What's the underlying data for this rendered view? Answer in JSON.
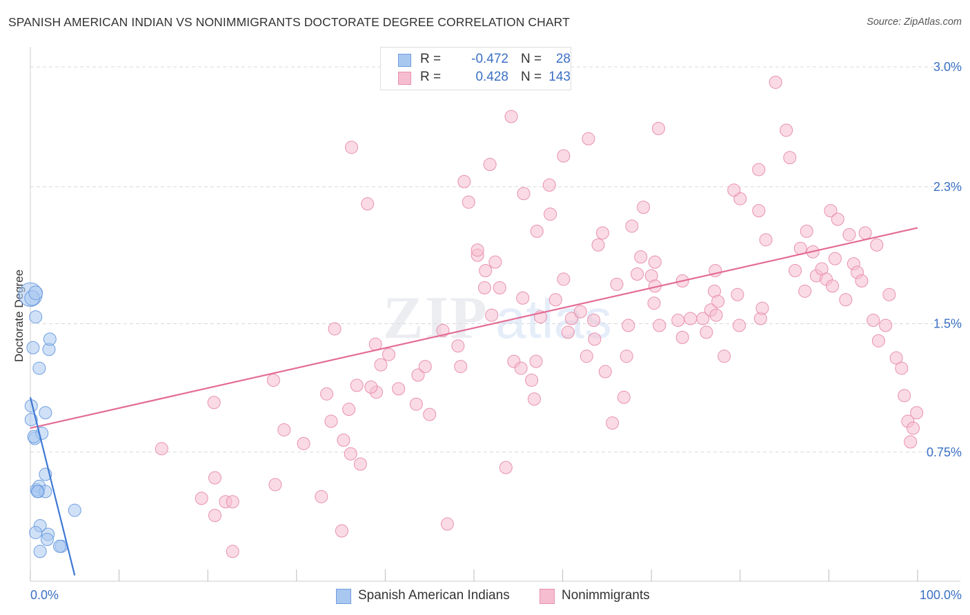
{
  "header": {
    "title": "SPANISH AMERICAN INDIAN VS NONIMMIGRANTS DOCTORATE DEGREE CORRELATION CHART",
    "source": "Source: ZipAtlas.com"
  },
  "legend_top": {
    "rows": [
      {
        "r_label": "R =",
        "r_value": "-0.472",
        "n_label": "N =",
        "n_value": "28"
      },
      {
        "r_label": "R =",
        "r_value": "0.428",
        "n_label": "N =",
        "n_value": "143"
      }
    ]
  },
  "colors": {
    "blue_fill": "#a9c8f0",
    "blue_stroke": "#6d9de0",
    "blue_line": "#3d78d4",
    "pink_fill": "#f6bdd0",
    "pink_stroke": "#e890ad",
    "pink_line": "#e46b95",
    "axis_text": "#3a6fc4",
    "grid": "#d8d8d8"
  },
  "chart_data": {
    "type": "scatter",
    "title": "SPANISH AMERICAN INDIAN VS NONIMMIGRANTS DOCTORATE DEGREE CORRELATION CHART",
    "xlabel": "",
    "ylabel": "Doctorate Degree",
    "xlim": [
      0,
      100
    ],
    "ylim": [
      0,
      3.0
    ],
    "x_tick_labels": [
      "0.0%",
      "100.0%"
    ],
    "y_ticks": [
      0.75,
      1.5,
      2.3,
      3.0
    ],
    "y_tick_labels": [
      "0.75%",
      "1.5%",
      "2.3%",
      "3.0%"
    ],
    "grid": true,
    "legend_position": "bottom-center",
    "series": [
      {
        "name": "Spanish American Indians",
        "r": -0.472,
        "n": 28,
        "trend": {
          "x": [
            0.0,
            5.0
          ],
          "y": [
            1.07,
            0.03
          ]
        },
        "points": [
          [
            0.0,
            1.67,
            1.9
          ],
          [
            0.2,
            1.65,
            1.2
          ],
          [
            0.6,
            1.68,
            1.1
          ],
          [
            0.6,
            1.54,
            1.0
          ],
          [
            0.3,
            1.36,
            1.0
          ],
          [
            2.1,
            1.35,
            1.0
          ],
          [
            2.2,
            1.41,
            1.0
          ],
          [
            1.0,
            1.24,
            1.0
          ],
          [
            0.1,
            1.02,
            1.0
          ],
          [
            1.7,
            0.98,
            1.0
          ],
          [
            0.1,
            0.94,
            1.0
          ],
          [
            0.5,
            0.83,
            1.0
          ],
          [
            1.3,
            0.86,
            1.0
          ],
          [
            0.4,
            0.84,
            1.0
          ],
          [
            1.7,
            0.62,
            1.0
          ],
          [
            0.7,
            0.53,
            1.0
          ],
          [
            1.0,
            0.55,
            1.0
          ],
          [
            0.9,
            0.52,
            1.0
          ],
          [
            1.7,
            0.52,
            1.0
          ],
          [
            5.0,
            0.41,
            1.0
          ],
          [
            1.1,
            0.32,
            1.0
          ],
          [
            0.6,
            0.28,
            1.0
          ],
          [
            2.0,
            0.27,
            1.0
          ],
          [
            1.9,
            0.24,
            1.0
          ],
          [
            1.1,
            0.17,
            1.0
          ],
          [
            3.5,
            0.2,
            1.0
          ],
          [
            3.3,
            0.2,
            1.0
          ],
          [
            0.8,
            0.52,
            1.0
          ]
        ]
      },
      {
        "name": "Nonimmigrants",
        "r": 0.428,
        "n": 143,
        "trend": {
          "x": [
            0.0,
            100.0
          ],
          "y": [
            0.89,
            2.06
          ]
        },
        "points": [
          [
            14.8,
            0.77,
            1.0
          ],
          [
            20.7,
            1.04,
            1.0
          ],
          [
            19.3,
            0.48,
            1.0
          ],
          [
            20.8,
            0.38,
            1.0
          ],
          [
            20.8,
            0.6,
            1.0
          ],
          [
            22.0,
            0.46,
            1.0
          ],
          [
            22.8,
            0.46,
            1.0
          ],
          [
            22.8,
            0.17,
            1.0
          ],
          [
            27.4,
            1.17,
            1.0
          ],
          [
            28.6,
            0.88,
            1.0
          ],
          [
            27.6,
            0.56,
            1.0
          ],
          [
            30.8,
            0.8,
            1.0
          ],
          [
            32.8,
            0.49,
            1.0
          ],
          [
            33.9,
            0.93,
            1.0
          ],
          [
            35.1,
            0.29,
            1.0
          ],
          [
            34.3,
            1.47,
            1.0
          ],
          [
            35.9,
            1.0,
            1.0
          ],
          [
            33.4,
            1.09,
            1.0
          ],
          [
            36.2,
            2.53,
            1.0
          ],
          [
            35.3,
            0.82,
            1.0
          ],
          [
            37.2,
            0.68,
            1.0
          ],
          [
            36.8,
            1.14,
            1.0
          ],
          [
            36.1,
            0.74,
            1.0
          ],
          [
            38.0,
            2.2,
            1.0
          ],
          [
            39.0,
            1.1,
            1.0
          ],
          [
            38.4,
            1.13,
            1.0
          ],
          [
            38.9,
            1.38,
            1.0
          ],
          [
            39.5,
            1.26,
            1.0
          ],
          [
            40.4,
            1.32,
            1.0
          ],
          [
            41.5,
            1.12,
            1.0
          ],
          [
            43.5,
            1.03,
            1.0
          ],
          [
            43.7,
            1.2,
            1.0
          ],
          [
            44.5,
            1.25,
            1.0
          ],
          [
            45.0,
            0.97,
            1.0
          ],
          [
            46.5,
            1.46,
            1.0
          ],
          [
            47.0,
            0.33,
            1.0
          ],
          [
            48.2,
            1.37,
            1.0
          ],
          [
            48.5,
            1.25,
            1.0
          ],
          [
            49.4,
            2.21,
            1.0
          ],
          [
            48.9,
            2.33,
            1.0
          ],
          [
            50.4,
            1.9,
            1.0
          ],
          [
            50.4,
            1.93,
            1.0
          ],
          [
            51.3,
            1.81,
            1.0
          ],
          [
            51.2,
            1.71,
            1.0
          ],
          [
            52.0,
            1.55,
            1.0
          ],
          [
            51.8,
            2.43,
            1.0
          ],
          [
            52.4,
            1.86,
            1.0
          ],
          [
            52.9,
            1.71,
            1.0
          ],
          [
            53.6,
            0.66,
            1.0
          ],
          [
            54.2,
            2.71,
            1.0
          ],
          [
            54.5,
            1.28,
            1.0
          ],
          [
            55.3,
            1.24,
            1.0
          ],
          [
            55.5,
            1.65,
            1.0
          ],
          [
            56.5,
            1.17,
            1.0
          ],
          [
            56.8,
            1.06,
            1.0
          ],
          [
            57.5,
            1.54,
            1.0
          ],
          [
            57.0,
            1.28,
            1.0
          ],
          [
            58.5,
            2.31,
            1.0
          ],
          [
            58.6,
            2.14,
            1.0
          ],
          [
            59.2,
            1.64,
            1.0
          ],
          [
            60.1,
            1.76,
            1.0
          ],
          [
            60.1,
            2.48,
            1.0
          ],
          [
            60.6,
            1.45,
            1.0
          ],
          [
            61.0,
            1.53,
            1.0
          ],
          [
            62.0,
            1.57,
            1.0
          ],
          [
            62.7,
            1.31,
            1.0
          ],
          [
            62.9,
            2.58,
            1.0
          ],
          [
            63.5,
            1.52,
            1.0
          ],
          [
            63.6,
            1.41,
            1.0
          ],
          [
            64.5,
            2.03,
            1.0
          ],
          [
            64.8,
            1.22,
            1.0
          ],
          [
            65.6,
            0.92,
            1.0
          ],
          [
            66.9,
            1.07,
            1.0
          ],
          [
            67.2,
            1.31,
            1.0
          ],
          [
            67.4,
            1.49,
            1.0
          ],
          [
            68.4,
            1.79,
            1.0
          ],
          [
            68.8,
            1.89,
            1.0
          ],
          [
            69.1,
            2.18,
            1.0
          ],
          [
            70.4,
            1.86,
            1.0
          ],
          [
            70.0,
            1.78,
            1.0
          ],
          [
            70.8,
            2.64,
            1.0
          ],
          [
            70.9,
            1.49,
            1.0
          ],
          [
            70.4,
            1.72,
            1.0
          ],
          [
            70.3,
            1.62,
            1.0
          ],
          [
            73.0,
            1.52,
            1.0
          ],
          [
            73.5,
            1.75,
            1.0
          ],
          [
            73.5,
            1.42,
            1.0
          ],
          [
            74.4,
            1.53,
            1.0
          ],
          [
            76.2,
            1.45,
            1.0
          ],
          [
            75.8,
            1.53,
            1.0
          ],
          [
            76.7,
            1.58,
            1.0
          ],
          [
            77.3,
            1.55,
            1.0
          ],
          [
            77.2,
            1.81,
            1.0
          ],
          [
            77.1,
            1.69,
            1.0
          ],
          [
            78.2,
            1.31,
            1.0
          ],
          [
            77.5,
            1.63,
            1.0
          ],
          [
            79.7,
            1.67,
            1.0
          ],
          [
            79.9,
            1.49,
            1.0
          ],
          [
            82.1,
            2.16,
            1.0
          ],
          [
            82.3,
            1.53,
            1.0
          ],
          [
            82.5,
            1.59,
            1.0
          ],
          [
            82.9,
            1.99,
            1.0
          ],
          [
            84.0,
            2.91,
            1.0
          ],
          [
            85.2,
            2.63,
            1.0
          ],
          [
            86.2,
            1.81,
            1.0
          ],
          [
            86.8,
            1.94,
            1.0
          ],
          [
            87.3,
            1.69,
            1.0
          ],
          [
            87.5,
            2.04,
            1.0
          ],
          [
            88.2,
            1.92,
            1.0
          ],
          [
            88.6,
            1.78,
            1.0
          ],
          [
            89.2,
            1.82,
            1.0
          ],
          [
            89.7,
            1.76,
            1.0
          ],
          [
            90.2,
            2.16,
            1.0
          ],
          [
            90.4,
            1.72,
            1.0
          ],
          [
            90.7,
            1.88,
            1.0
          ],
          [
            91.0,
            2.11,
            1.0
          ],
          [
            91.9,
            1.64,
            1.0
          ],
          [
            92.3,
            2.02,
            1.0
          ],
          [
            92.8,
            1.85,
            1.0
          ],
          [
            93.2,
            1.8,
            1.0
          ],
          [
            93.7,
            1.75,
            1.0
          ],
          [
            94.1,
            2.03,
            1.0
          ],
          [
            95.0,
            1.52,
            1.0
          ],
          [
            95.6,
            1.4,
            1.0
          ],
          [
            96.4,
            1.49,
            1.0
          ],
          [
            96.8,
            1.67,
            1.0
          ],
          [
            97.6,
            1.3,
            1.0
          ],
          [
            98.2,
            1.24,
            1.0
          ],
          [
            98.5,
            1.08,
            1.0
          ],
          [
            98.9,
            0.93,
            1.0
          ],
          [
            99.2,
            0.81,
            1.0
          ],
          [
            99.5,
            0.89,
            1.0
          ],
          [
            99.9,
            0.98,
            1.0
          ],
          [
            95.4,
            1.96,
            1.0
          ],
          [
            85.6,
            2.47,
            1.0
          ],
          [
            82.1,
            2.4,
            1.0
          ],
          [
            80.0,
            2.23,
            1.0
          ],
          [
            79.3,
            2.28,
            1.0
          ],
          [
            67.8,
            2.07,
            1.0
          ],
          [
            66.1,
            1.73,
            1.0
          ],
          [
            64.0,
            1.96,
            1.0
          ],
          [
            57.1,
            2.04,
            1.0
          ],
          [
            55.6,
            2.26,
            1.0
          ]
        ]
      }
    ]
  },
  "bottom_legend": {
    "items": [
      "Spanish American Indians",
      "Nonimmigrants"
    ]
  }
}
